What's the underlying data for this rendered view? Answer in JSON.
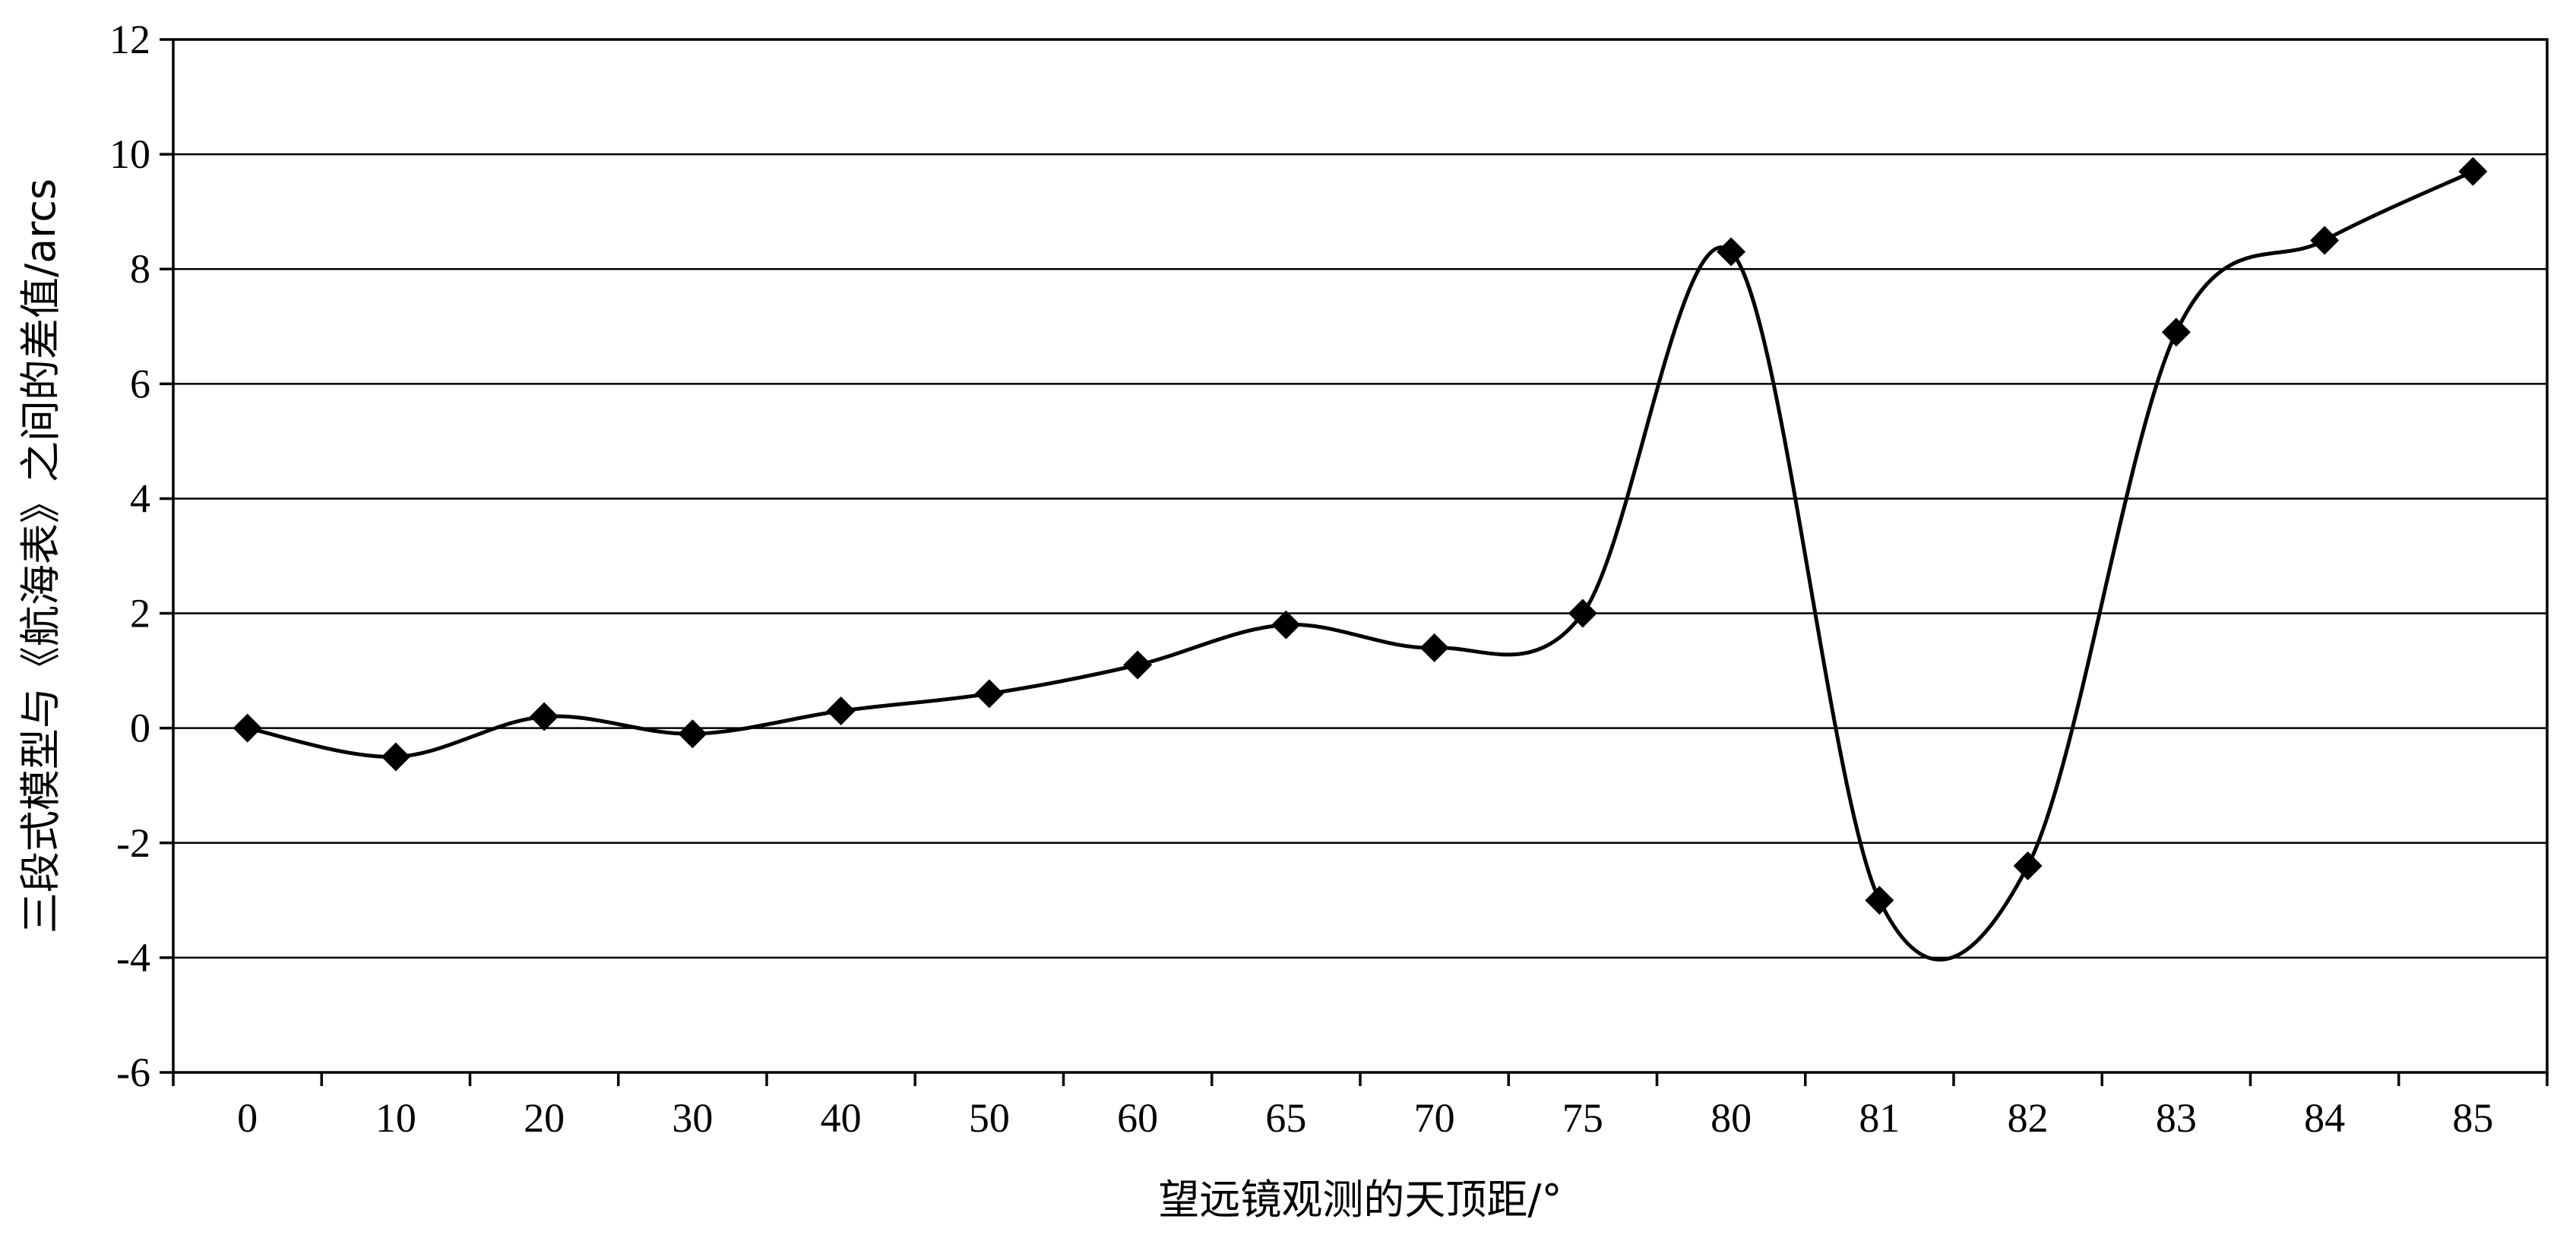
{
  "chart_data": {
    "type": "line",
    "title": "",
    "xlabel": "望远镜观测的天顶距/°",
    "ylabel": "三段式模型与《航海表》之间的差值/arcs",
    "categories": [
      "0",
      "10",
      "20",
      "30",
      "40",
      "50",
      "60",
      "65",
      "70",
      "75",
      "80",
      "81",
      "82",
      "83",
      "84",
      "85"
    ],
    "series": [
      {
        "values": [
          0.0,
          -0.5,
          0.2,
          -0.1,
          0.3,
          0.6,
          1.1,
          1.8,
          1.4,
          2.0,
          8.3,
          -3.0,
          -2.4,
          6.9,
          8.5,
          9.7
        ]
      }
    ],
    "ylim": [
      -6,
      12
    ],
    "yticks": [
      "12",
      "10",
      "8",
      "6",
      "4",
      "2",
      "0",
      "-2",
      "-4",
      "-6"
    ],
    "grid": "horizontal",
    "smooth": true,
    "marker": "diamond",
    "legend": "none"
  }
}
